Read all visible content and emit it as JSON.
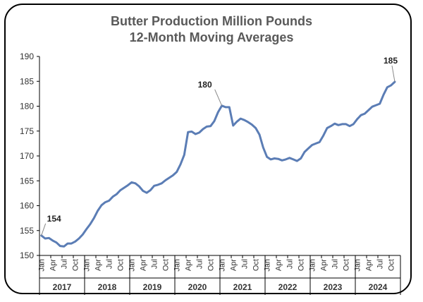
{
  "chart_data": {
    "type": "line",
    "title": "Butter Production Million Pounds",
    "subtitle": "12-Month Moving  Averages",
    "xlabel": "",
    "ylabel": "",
    "ylim": [
      150,
      190
    ],
    "yticks": [
      "150",
      "155",
      "160",
      "165",
      "170",
      "175",
      "180",
      "185",
      "190"
    ],
    "month_labels": [
      "Jan",
      "Apr",
      "Jul",
      "Oct"
    ],
    "years": [
      "2017",
      "2018",
      "2019",
      "2020",
      "2021",
      "2022",
      "2023",
      "2024"
    ],
    "grid": false,
    "legend": "none",
    "line_color": "#5B7DB5",
    "series": [
      {
        "values": [
          154.0,
          153.4,
          153.5,
          153.0,
          152.6,
          151.9,
          151.8,
          152.4,
          152.4,
          152.8,
          153.4,
          154.2,
          155.3,
          156.3,
          157.5,
          159.0,
          160.1,
          160.7,
          161.0,
          161.8,
          162.3,
          163.1,
          163.6,
          164.1,
          164.7,
          164.5,
          163.9,
          163.0,
          162.6,
          163.1,
          164.0,
          164.2,
          164.5,
          165.1,
          165.6,
          166.1,
          166.8,
          168.3,
          170.2,
          174.8,
          174.9,
          174.4,
          174.7,
          175.4,
          175.9,
          176.0,
          177.0,
          178.8,
          180.1,
          179.8,
          179.8,
          176.1,
          176.9,
          177.5,
          177.2,
          176.8,
          176.3,
          175.6,
          174.3,
          171.7,
          169.8,
          169.3,
          169.5,
          169.4,
          169.1,
          169.3,
          169.6,
          169.3,
          169.0,
          169.5,
          170.8,
          171.5,
          172.2,
          172.5,
          172.8,
          174.1,
          175.6,
          176.0,
          176.5,
          176.2,
          176.4,
          176.4,
          176.0,
          176.4,
          177.4,
          178.2,
          178.5,
          179.2,
          179.9,
          180.2,
          180.5,
          182.3,
          183.8,
          184.2,
          184.9
        ]
      }
    ],
    "annotations": [
      {
        "label": "154",
        "index": 0,
        "value": 154.0
      },
      {
        "label": "180",
        "index": 48,
        "value": 180.1
      },
      {
        "label": "185",
        "index": 94,
        "value": 184.9
      }
    ]
  }
}
